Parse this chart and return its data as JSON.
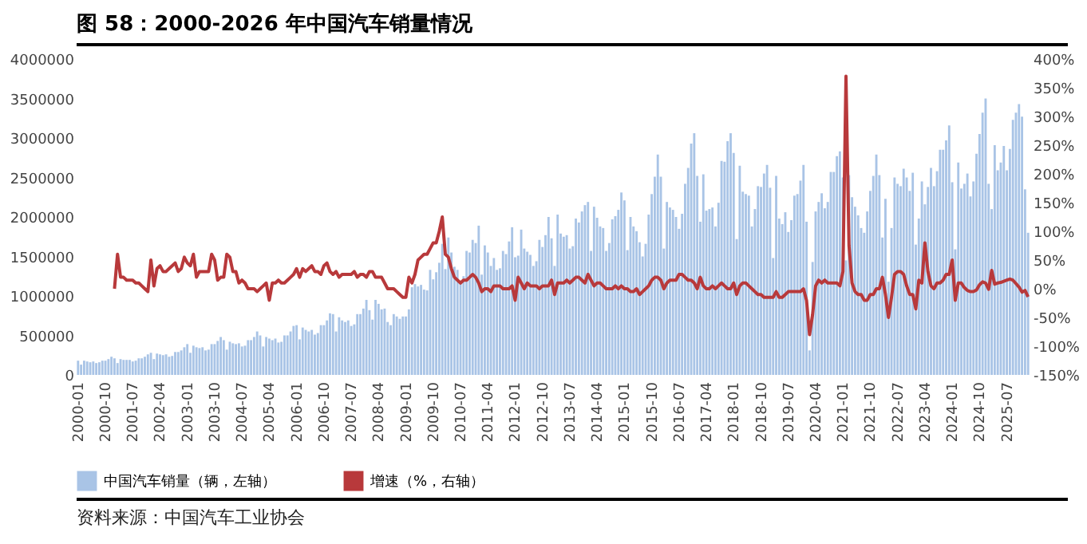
{
  "chart_data": {
    "type": "bar",
    "title": "图 58：2000-2026 年中国汽车销量情况",
    "annotations": [
      "资料来源：中国汽车工业协会"
    ],
    "legend": "bottom",
    "categories": [
      "2000-01",
      null,
      null,
      null,
      null,
      null,
      null,
      null,
      null,
      "2000-10",
      null,
      null,
      null,
      null,
      null,
      null,
      null,
      null,
      "2001-07",
      null,
      null,
      null,
      null,
      null,
      null,
      null,
      null,
      "2002-04",
      null,
      null,
      null,
      null,
      null,
      null,
      null,
      null,
      "2003-01",
      null,
      null,
      null,
      null,
      null,
      null,
      null,
      null,
      "2003-10",
      null,
      null,
      null,
      null,
      null,
      null,
      null,
      null,
      "2004-07",
      null,
      null,
      null,
      null,
      null,
      null,
      null,
      null,
      "2005-04",
      null,
      null,
      null,
      null,
      null,
      null,
      null,
      null,
      "2006-01",
      null,
      null,
      null,
      null,
      null,
      null,
      null,
      null,
      "2006-10",
      null,
      null,
      null,
      null,
      null,
      null,
      null,
      null,
      "2007-07",
      null,
      null,
      null,
      null,
      null,
      null,
      null,
      null,
      "2008-04",
      null,
      null,
      null,
      null,
      null,
      null,
      null,
      null,
      "2009-01",
      null,
      null,
      null,
      null,
      null,
      null,
      null,
      null,
      "2009-10",
      null,
      null,
      null,
      null,
      null,
      null,
      null,
      null,
      "2010-07",
      null,
      null,
      null,
      null,
      null,
      null,
      null,
      null,
      "2011-04",
      null,
      null,
      null,
      null,
      null,
      null,
      null,
      null,
      "2012-01",
      null,
      null,
      null,
      null,
      null,
      null,
      null,
      null,
      "2012-10",
      null,
      null,
      null,
      null,
      null,
      null,
      null,
      null,
      "2013-07",
      null,
      null,
      null,
      null,
      null,
      null,
      null,
      null,
      "2014-04",
      null,
      null,
      null,
      null,
      null,
      null,
      null,
      null,
      "2015-01",
      null,
      null,
      null,
      null,
      null,
      null,
      null,
      null,
      "2015-10",
      null,
      null,
      null,
      null,
      null,
      null,
      null,
      null,
      "2016-07",
      null,
      null,
      null,
      null,
      null,
      null,
      null,
      null,
      "2017-04",
      null,
      null,
      null,
      null,
      null,
      null,
      null,
      null,
      "2018-01",
      null,
      null,
      null,
      null,
      null,
      null,
      null,
      null,
      "2018-10",
      null,
      null,
      null,
      null,
      null,
      null,
      null,
      null,
      "2019-07",
      null,
      null,
      null,
      null,
      null,
      null,
      null,
      null,
      "2020-04",
      null,
      null,
      null,
      null,
      null,
      null,
      null,
      null,
      "2021-01",
      null,
      null,
      null,
      null,
      null,
      null,
      null,
      null,
      "2021-10",
      null,
      null,
      null,
      null,
      null,
      null,
      null,
      null,
      "2022-07",
      null,
      null,
      null,
      null,
      null,
      null,
      null,
      null,
      "2023-04",
      null,
      null,
      null,
      null,
      null,
      null,
      null,
      null,
      "2024-01",
      null,
      null,
      null,
      null,
      null,
      null,
      null,
      null,
      "2024-10",
      null,
      null,
      null,
      null,
      null,
      null,
      null,
      null,
      "2025-07",
      null,
      null,
      null,
      null,
      null,
      null,
      null
    ],
    "ylim": [
      0,
      4000000
    ],
    "yticks": [
      0,
      500000,
      1000000,
      1500000,
      2000000,
      2500000,
      3000000,
      3500000,
      4000000
    ],
    "y2lim": [
      -150,
      400
    ],
    "y2ticks": [
      {
        "value": -150,
        "label": "-150%"
      },
      {
        "value": -100,
        "label": "-100%"
      },
      {
        "value": -50,
        "label": "-50%"
      },
      {
        "value": 0,
        "label": "0%"
      },
      {
        "value": 50,
        "label": "50%"
      },
      {
        "value": 100,
        "label": "100%"
      },
      {
        "value": 150,
        "label": "150%"
      },
      {
        "value": 200,
        "label": "200%"
      },
      {
        "value": 250,
        "label": "250%"
      },
      {
        "value": 300,
        "label": "300%"
      },
      {
        "value": 350,
        "label": "350%"
      },
      {
        "value": 400,
        "label": "400%"
      }
    ],
    "series": [
      {
        "name": "中国汽车销量（辆，左轴）",
        "color": "#a9c4e6",
        "values": [
          180000,
          130000,
          180000,
          170000,
          160000,
          170000,
          150000,
          160000,
          180000,
          180000,
          200000,
          230000,
          210000,
          150000,
          200000,
          190000,
          190000,
          190000,
          170000,
          180000,
          210000,
          210000,
          230000,
          260000,
          280000,
          200000,
          270000,
          260000,
          250000,
          260000,
          230000,
          240000,
          290000,
          290000,
          310000,
          350000,
          390000,
          280000,
          370000,
          350000,
          340000,
          350000,
          310000,
          320000,
          390000,
          390000,
          430000,
          480000,
          440000,
          320000,
          420000,
          400000,
          390000,
          400000,
          360000,
          370000,
          440000,
          440000,
          480000,
          550000,
          500000,
          360000,
          480000,
          460000,
          440000,
          460000,
          410000,
          420000,
          500000,
          500000,
          550000,
          620000,
          630000,
          450000,
          600000,
          570000,
          550000,
          570000,
          510000,
          530000,
          630000,
          630000,
          690000,
          780000,
          770000,
          550000,
          730000,
          690000,
          670000,
          690000,
          620000,
          640000,
          770000,
          770000,
          840000,
          950000,
          820000,
          700000,
          950000,
          900000,
          830000,
          840000,
          670000,
          630000,
          770000,
          740000,
          710000,
          740000,
          740000,
          830000,
          1110000,
          1150000,
          1120000,
          1140000,
          1080000,
          1070000,
          1330000,
          1210000,
          1300000,
          1420000,
          1660000,
          1340000,
          1740000,
          1550000,
          1370000,
          1330000,
          1190000,
          1250000,
          1570000,
          1550000,
          1710000,
          1670000,
          1890000,
          1270000,
          1640000,
          1550000,
          1380000,
          1480000,
          1330000,
          1350000,
          1570000,
          1530000,
          1690000,
          1870000,
          1490000,
          1510000,
          1840000,
          1600000,
          1560000,
          1520000,
          1380000,
          1440000,
          1710000,
          1620000,
          1770000,
          2000000,
          1730000,
          1380000,
          2030000,
          1790000,
          1750000,
          1770000,
          1600000,
          1630000,
          1980000,
          1930000,
          2070000,
          2150000,
          2190000,
          1570000,
          2130000,
          1990000,
          1880000,
          1860000,
          1570000,
          1670000,
          1970000,
          2010000,
          2090000,
          2310000,
          2210000,
          1580000,
          2000000,
          1880000,
          1820000,
          1680000,
          1500000,
          1660000,
          2030000,
          2290000,
          2510000,
          2790000,
          2510000,
          1600000,
          2190000,
          2120000,
          2090000,
          2000000,
          1850000,
          2040000,
          2420000,
          2620000,
          2930000,
          3060000,
          2520000,
          1940000,
          2540000,
          2080000,
          2100000,
          2120000,
          1880000,
          2180000,
          2710000,
          2700000,
          2960000,
          3060000,
          2810000,
          1720000,
          2650000,
          2320000,
          2290000,
          2270000,
          1880000,
          2100000,
          2390000,
          2380000,
          2550000,
          2660000,
          2370000,
          1480000,
          2520000,
          1980000,
          1910000,
          2060000,
          1810000,
          1960000,
          2270000,
          2290000,
          2460000,
          2660000,
          1940000,
          310000,
          1430000,
          2070000,
          2190000,
          2300000,
          2110000,
          2190000,
          2570000,
          2570000,
          2770000,
          2830000,
          2500000,
          1450000,
          2530000,
          2250000,
          2130000,
          2020000,
          1860000,
          1800000,
          2070000,
          2330000,
          2520000,
          2790000,
          2530000,
          1740000,
          2230000,
          1180000,
          1860000,
          2500000,
          2420000,
          2390000,
          2610000,
          2500000,
          2330000,
          2560000,
          1650000,
          1980000,
          2450000,
          2160000,
          2380000,
          2620000,
          2390000,
          2580000,
          2850000,
          2850000,
          2970000,
          3160000,
          2440000,
          1590000,
          2690000,
          2360000,
          2420000,
          2550000,
          2260000,
          2450000,
          2800000,
          3050000,
          3320000,
          3500000,
          2420000,
          2100000,
          2910000,
          2590000,
          2690000,
          2900000,
          2590000,
          2860000,
          3230000,
          3320000,
          3430000,
          3270000,
          2350000,
          1800000
        ]
      },
      {
        "name": "增速（%，右轴）",
        "type": "line",
        "axis": "y2",
        "color": "#b8393b",
        "values": [
          null,
          null,
          null,
          null,
          null,
          null,
          null,
          null,
          null,
          null,
          null,
          null,
          0,
          60,
          20,
          20,
          15,
          15,
          15,
          10,
          10,
          5,
          0,
          -5,
          50,
          5,
          35,
          40,
          30,
          30,
          35,
          40,
          45,
          30,
          35,
          55,
          45,
          40,
          60,
          20,
          30,
          30,
          30,
          30,
          60,
          50,
          15,
          20,
          20,
          60,
          55,
          30,
          30,
          10,
          15,
          10,
          0,
          0,
          0,
          -5,
          0,
          5,
          10,
          -20,
          10,
          10,
          15,
          10,
          10,
          15,
          20,
          25,
          35,
          20,
          35,
          30,
          35,
          40,
          30,
          30,
          25,
          40,
          45,
          30,
          25,
          30,
          20,
          25,
          25,
          25,
          25,
          30,
          20,
          25,
          25,
          20,
          30,
          30,
          20,
          20,
          20,
          10,
          0,
          0,
          0,
          -5,
          -10,
          -15,
          -15,
          20,
          10,
          25,
          50,
          55,
          60,
          60,
          70,
          80,
          80,
          100,
          125,
          60,
          55,
          35,
          20,
          15,
          10,
          15,
          15,
          20,
          25,
          20,
          10,
          -5,
          0,
          0,
          -5,
          5,
          5,
          5,
          0,
          0,
          0,
          5,
          -20,
          20,
          10,
          0,
          10,
          5,
          5,
          5,
          0,
          5,
          5,
          5,
          15,
          -10,
          10,
          10,
          10,
          15,
          10,
          15,
          20,
          20,
          15,
          10,
          25,
          15,
          5,
          10,
          10,
          5,
          0,
          0,
          0,
          5,
          0,
          5,
          0,
          0,
          -5,
          -5,
          0,
          -10,
          -5,
          0,
          5,
          15,
          20,
          20,
          15,
          0,
          10,
          15,
          15,
          15,
          25,
          25,
          20,
          15,
          15,
          10,
          0,
          20,
          5,
          0,
          0,
          5,
          0,
          5,
          10,
          5,
          0,
          0,
          10,
          -10,
          5,
          10,
          10,
          5,
          0,
          -5,
          -10,
          -10,
          -15,
          -15,
          -15,
          -15,
          -5,
          -15,
          -15,
          -10,
          -5,
          -5,
          -5,
          -5,
          -5,
          0,
          -20,
          -80,
          -45,
          5,
          15,
          10,
          15,
          10,
          10,
          10,
          10,
          5,
          30,
          370,
          75,
          10,
          -5,
          -10,
          -10,
          -20,
          -20,
          -10,
          -10,
          0,
          0,
          20,
          -10,
          -50,
          -15,
          25,
          30,
          30,
          25,
          5,
          -10,
          -10,
          -35,
          15,
          10,
          80,
          30,
          5,
          0,
          10,
          10,
          15,
          25,
          25,
          50,
          -20,
          10,
          10,
          2,
          -3,
          -5,
          -5,
          -2,
          7,
          12,
          10,
          -1,
          32,
          8,
          10,
          11,
          13,
          15,
          17,
          15,
          9,
          3,
          -6,
          -3,
          -14
        ]
      }
    ]
  }
}
